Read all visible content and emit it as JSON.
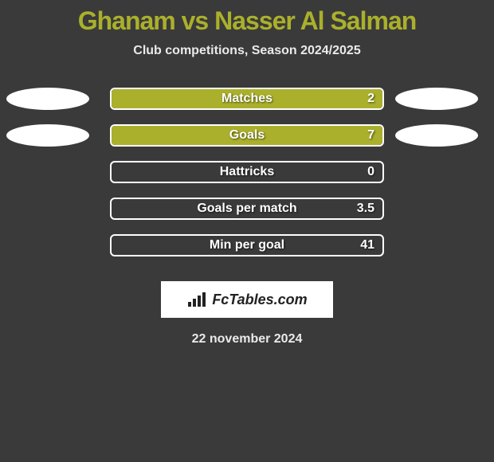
{
  "header": {
    "title": "Ghanam vs Nasser Al Salman",
    "title_color": "#aab02b",
    "title_fontsize": 32,
    "subtitle": "Club competitions, Season 2024/2025",
    "subtitle_fontsize": 16
  },
  "chart": {
    "type": "bar",
    "bar_fill_color": "#aab02b",
    "bar_border_color": "#ffffff",
    "label_fontsize": 16,
    "value_fontsize": 16,
    "rows": [
      {
        "label": "Matches",
        "value": "2",
        "fill_pct": 100,
        "left_ellipse": true,
        "right_ellipse": true
      },
      {
        "label": "Goals",
        "value": "7",
        "fill_pct": 100,
        "left_ellipse": true,
        "right_ellipse": true
      },
      {
        "label": "Hattricks",
        "value": "0",
        "fill_pct": 0,
        "left_ellipse": false,
        "right_ellipse": false
      },
      {
        "label": "Goals per match",
        "value": "3.5",
        "fill_pct": 0,
        "left_ellipse": false,
        "right_ellipse": false
      },
      {
        "label": "Min per goal",
        "value": "41",
        "fill_pct": 0,
        "left_ellipse": false,
        "right_ellipse": false
      }
    ]
  },
  "footer": {
    "badge_text": "FcTables.com",
    "date": "22 november 2024",
    "date_fontsize": 16
  },
  "colors": {
    "background": "#3a3a3a",
    "ellipse": "#ffffff",
    "text_light": "#eaeaea"
  }
}
